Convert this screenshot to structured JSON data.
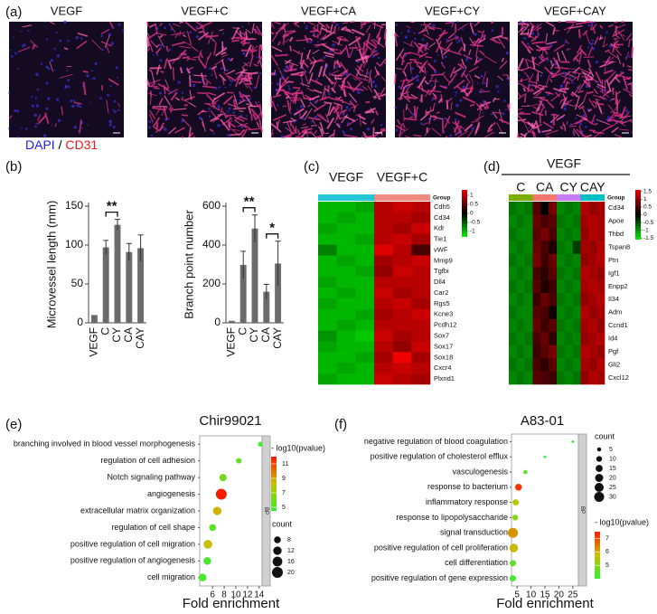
{
  "panel_a": {
    "label": "(a)",
    "image_titles": [
      "VEGF",
      "VEGF+C",
      "VEGF+CA",
      "VEGF+CY",
      "VEGF+CAY"
    ],
    "stain_legend": [
      "DAPI",
      "/",
      "CD31"
    ],
    "stain_colors": [
      "#2020f0",
      "#000000",
      "#f01818"
    ]
  },
  "chart_data": [
    {
      "type": "bar",
      "panel_label": "(b)",
      "ylabel": "Microvessel length (mm)",
      "categories": [
        "VEGF",
        "C",
        "CY",
        "CA",
        "CAY"
      ],
      "values": [
        10,
        97,
        126,
        91,
        96
      ],
      "errors": [
        0,
        9,
        7,
        11,
        17
      ],
      "ylim": [
        0,
        150
      ],
      "yticks": [
        0,
        50,
        100,
        150
      ],
      "color": "#6b6b6b",
      "significance": [
        {
          "label": "**",
          "pair": [
            "C",
            "CY"
          ]
        }
      ]
    },
    {
      "type": "bar",
      "ylabel": "Branch point number",
      "categories": [
        "VEGF",
        "C",
        "CY",
        "CA",
        "CAY"
      ],
      "values": [
        10,
        298,
        485,
        160,
        305
      ],
      "errors": [
        0,
        70,
        70,
        38,
        115
      ],
      "ylim": [
        0,
        600
      ],
      "yticks": [
        0,
        200,
        400,
        600
      ],
      "color": "#6b6b6b",
      "significance": [
        {
          "label": "**",
          "pair": [
            "C",
            "CY"
          ]
        },
        {
          "label": "*",
          "pair": [
            "CA",
            "CAY"
          ]
        }
      ]
    },
    {
      "type": "heatmap",
      "panel_label": "(c)",
      "group_label": "Group",
      "groups": [
        {
          "name": "VEGF",
          "color": "#22c8d8"
        },
        {
          "name": "VEGF+C",
          "color": "#f28a80"
        }
      ],
      "rows": [
        "Cdh5",
        "Cd34",
        "Kdr",
        "Tie1",
        "vWF",
        "Mmp9",
        "Tgfbi",
        "Dll4",
        "Car2",
        "Rgs5",
        "Kcne3",
        "Pcdh12",
        "Sox7",
        "Sox17",
        "Sox18",
        "Cxcr4",
        "Plxnd1"
      ],
      "values": [
        [
          -1.0,
          -1.0,
          -0.9,
          1.0,
          1.1,
          1.0
        ],
        [
          -1.0,
          -0.9,
          -1.0,
          1.0,
          1.0,
          0.9
        ],
        [
          -0.9,
          -1.0,
          -1.0,
          1.0,
          0.9,
          1.1
        ],
        [
          -1.0,
          -1.0,
          -0.9,
          1.0,
          1.1,
          0.9
        ],
        [
          -0.7,
          -1.0,
          -1.0,
          1.2,
          1.0,
          0.4
        ],
        [
          -1.0,
          -0.9,
          -1.0,
          0.9,
          1.0,
          1.1
        ],
        [
          -1.0,
          -1.0,
          -0.9,
          0.8,
          1.1,
          1.0
        ],
        [
          -0.9,
          -1.0,
          -1.0,
          1.0,
          1.0,
          1.0
        ],
        [
          -1.0,
          -0.9,
          -1.0,
          1.1,
          0.9,
          1.0
        ],
        [
          -0.9,
          -1.0,
          -1.0,
          1.0,
          1.1,
          0.9
        ],
        [
          -1.0,
          -1.0,
          -0.9,
          0.9,
          1.0,
          1.1
        ],
        [
          -1.0,
          -0.9,
          -1.0,
          1.0,
          1.0,
          1.0
        ],
        [
          -0.8,
          -1.0,
          -1.1,
          1.1,
          0.9,
          1.0
        ],
        [
          -0.9,
          -1.0,
          -1.0,
          1.0,
          0.8,
          1.1
        ],
        [
          -1.0,
          -1.0,
          -0.9,
          0.9,
          1.3,
          0.9
        ],
        [
          -1.0,
          -0.9,
          -1.0,
          1.0,
          1.1,
          1.0
        ],
        [
          -0.9,
          -1.0,
          -1.0,
          1.1,
          1.0,
          0.9
        ]
      ],
      "zlim": [
        -1.3,
        1.3
      ],
      "colorbar_ticks": [
        1,
        0.5,
        0,
        -0.5,
        -1
      ],
      "palette": [
        "#00ee00",
        "#000000",
        "#ee0000"
      ]
    },
    {
      "type": "heatmap",
      "panel_label": "(d)",
      "supertitle": "VEGF",
      "group_label": "Group",
      "groups": [
        {
          "name": "C",
          "color": "#7cae00"
        },
        {
          "name": "CA",
          "color": "#f8766d"
        },
        {
          "name": "CY",
          "color": "#c77cff"
        },
        {
          "name": "CAY",
          "color": "#00bfc4"
        }
      ],
      "rows": [
        "Cd34",
        "Apoe",
        "Thbd",
        "Tspan8",
        "Ptn",
        "Igf1",
        "Enpp2",
        "Il34",
        "Adm",
        "Ccnd1",
        "Id4",
        "Pgf",
        "Gli2",
        "Cxcl12"
      ],
      "values": [
        [
          -0.8,
          -0.9,
          -0.8,
          0.6,
          0.0,
          0.8,
          -0.9,
          -0.8,
          -0.9,
          1.2,
          1.0,
          1.1
        ],
        [
          -0.9,
          -0.8,
          -0.9,
          0.7,
          0.5,
          0.6,
          -0.8,
          -0.9,
          -0.8,
          1.1,
          1.2,
          1.1
        ],
        [
          -0.8,
          -0.9,
          -0.9,
          0.6,
          0.8,
          0.5,
          -0.9,
          -0.8,
          -0.9,
          1.0,
          1.2,
          1.1
        ],
        [
          -0.9,
          -0.8,
          -0.9,
          0.7,
          0.5,
          0.2,
          -0.8,
          -0.9,
          -0.4,
          1.1,
          1.0,
          1.2
        ],
        [
          -0.8,
          -0.9,
          -0.8,
          0.8,
          0.4,
          0.7,
          -0.9,
          -0.8,
          -0.9,
          1.0,
          1.1,
          1.2
        ],
        [
          -0.9,
          -0.8,
          -0.9,
          0.5,
          0.3,
          0.6,
          -0.8,
          -0.9,
          -0.8,
          1.2,
          1.1,
          1.0
        ],
        [
          -0.8,
          -0.9,
          -0.8,
          0.6,
          0.2,
          0.4,
          -0.9,
          -0.8,
          -0.9,
          1.1,
          1.2,
          1.1
        ],
        [
          -0.9,
          -0.8,
          -0.9,
          0.4,
          0.7,
          0.5,
          -0.8,
          -0.9,
          -0.8,
          1.0,
          1.1,
          1.2
        ],
        [
          -0.8,
          -0.9,
          -0.9,
          0.6,
          0.5,
          0.1,
          -0.9,
          -0.8,
          -0.9,
          1.2,
          1.0,
          1.1
        ],
        [
          -0.9,
          -0.8,
          -0.9,
          0.7,
          0.4,
          0.6,
          -0.8,
          -0.9,
          -0.8,
          1.1,
          1.2,
          1.0
        ],
        [
          -0.8,
          -0.9,
          -0.8,
          0.5,
          0.7,
          0.3,
          -0.9,
          -0.8,
          -0.9,
          1.0,
          1.1,
          1.2
        ],
        [
          -0.9,
          -0.8,
          -0.9,
          0.4,
          0.6,
          0.8,
          -0.8,
          -0.9,
          -0.8,
          1.2,
          1.1,
          1.0
        ],
        [
          -0.8,
          -0.9,
          -0.8,
          0.5,
          0.3,
          0.6,
          -0.9,
          -0.8,
          -0.9,
          1.1,
          1.0,
          1.2
        ],
        [
          -0.9,
          -0.8,
          -0.9,
          0.6,
          0.5,
          0.4,
          -0.8,
          -0.9,
          -0.8,
          1.0,
          1.2,
          1.1
        ]
      ],
      "zlim": [
        -1.6,
        1.6
      ],
      "colorbar_ticks": [
        1.5,
        1,
        0.5,
        0,
        -0.5,
        -1,
        -1.5
      ],
      "palette": [
        "#00ee00",
        "#000000",
        "#ee0000"
      ]
    },
    {
      "type": "dot",
      "panel_label": "(e)",
      "title": "Chir99021",
      "xlabel": "Fold enrichment",
      "strip": "BP",
      "categories": [
        "branching involved in blood vessel morphogenesis",
        "regulation of cell adhesion",
        "Notch signaling pathway",
        "angiogenesis",
        "extracellular matrix organization",
        "regulation of cell shape",
        "positive regulation of cell migration",
        "positive regulation of angiogenesis",
        "cell migration"
      ],
      "values": [
        14.2,
        10.5,
        7.8,
        7.5,
        6.8,
        6.0,
        5.2,
        5.1,
        4.3
      ],
      "counts": [
        4,
        5,
        9,
        20,
        12,
        8,
        13,
        10,
        10
      ],
      "pvalues": [
        5.0,
        5.5,
        6.0,
        12.0,
        8.5,
        5.5,
        8.2,
        5.0,
        5.0
      ],
      "xlim": [
        3.8,
        14.5
      ],
      "xticks": [
        6,
        8,
        10,
        12,
        14
      ],
      "color_title": "- log10(pvalue)",
      "clim": [
        4.5,
        12
      ],
      "color_ticks": [
        11,
        9,
        7,
        5
      ],
      "size_title": "count",
      "size_ticks": [
        8,
        12,
        16,
        20
      ],
      "palette": [
        "#33ee33",
        "#c8c000",
        "#ff1a00"
      ]
    },
    {
      "type": "dot",
      "panel_label": "(f)",
      "title": "A83-01",
      "xlabel": "Fold enrichment",
      "strip": "BP",
      "categories": [
        "negative regulation of blood coagulation",
        "positive regulation of cholesterol efflux",
        "vasculogenesis",
        "response to bacterium",
        "inflammatory response",
        "response to lipopolysaccharide",
        "signal transduction",
        "positive regulation of cell proliferation",
        "cell differentiation",
        "positive regulation of gene expression"
      ],
      "values": [
        25,
        15,
        8,
        5.5,
        4.5,
        4.3,
        3.5,
        3.8,
        3.5,
        3.5
      ],
      "counts": [
        2,
        2,
        5,
        14,
        12,
        10,
        30,
        22,
        12,
        12
      ],
      "pvalues": [
        4.0,
        4.0,
        4.5,
        7.2,
        5.5,
        5.0,
        6.2,
        5.8,
        4.5,
        4.2
      ],
      "xlim": [
        3,
        27
      ],
      "xticks": [
        5,
        10,
        15,
        20,
        25
      ],
      "color_title": "- log10(pvalue)",
      "clim": [
        4,
        7.5
      ],
      "color_ticks": [
        7,
        6,
        5
      ],
      "size_title": "count",
      "size_ticks": [
        5,
        10,
        15,
        20,
        25,
        30
      ],
      "palette": [
        "#33ee33",
        "#c8c000",
        "#ff1a00"
      ]
    }
  ]
}
